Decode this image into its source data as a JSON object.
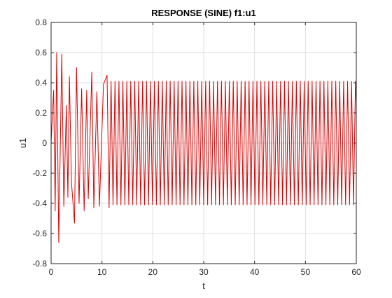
{
  "chart_data": {
    "type": "line",
    "title": "RESPONSE (SINE) f1:u1",
    "xlabel": "t",
    "ylabel": "u1",
    "xlim": [
      0,
      60
    ],
    "ylim": [
      -0.8,
      0.8
    ],
    "xticks": [
      0,
      10,
      20,
      30,
      40,
      50,
      60
    ],
    "yticks": [
      -0.8,
      -0.6,
      -0.4,
      -0.2,
      0,
      0.2,
      0.4,
      0.6,
      0.8
    ],
    "xtick_labels": [
      "0",
      "10",
      "20",
      "30",
      "40",
      "50",
      "60"
    ],
    "ytick_labels": [
      "-0.8",
      "-0.6",
      "-0.4",
      "-0.2",
      "0",
      "0.2",
      "0.4",
      "0.6",
      "0.8"
    ],
    "grid": true,
    "line_color": "#dd0000",
    "series": [
      {
        "color": "#dd0000",
        "signal": {
          "steady_amplitude": 0.41,
          "period": 0.775,
          "transient_amplitude": 0.26,
          "decay_time": 3.5,
          "t_end": 60
        },
        "peaks": [
          {
            "t": 0.5,
            "u": 0.35
          },
          {
            "t": 0.8,
            "u": -0.45
          },
          {
            "t": 1.1,
            "u": 0.6
          },
          {
            "t": 1.5,
            "u": -0.66
          },
          {
            "t": 2.1,
            "u": 0.59
          },
          {
            "t": 2.5,
            "u": -0.42
          },
          {
            "t": 3.0,
            "u": 0.25
          },
          {
            "t": 3.3,
            "u": -0.36
          },
          {
            "t": 3.6,
            "u": 0.44
          },
          {
            "t": 4.0,
            "u": -0.26
          },
          {
            "t": 4.6,
            "u": -0.53
          },
          {
            "t": 5.0,
            "u": 0.5
          },
          {
            "t": 5.5,
            "u": -0.4
          },
          {
            "t": 6.0,
            "u": 0.36
          },
          {
            "t": 6.5,
            "u": -0.45
          },
          {
            "t": 7.0,
            "u": 0.35
          },
          {
            "t": 7.3,
            "u": -0.37
          },
          {
            "t": 8.0,
            "u": 0.47
          },
          {
            "t": 8.4,
            "u": -0.43
          },
          {
            "t": 9.0,
            "u": 0.34
          },
          {
            "t": 9.5,
            "u": -0.42
          },
          {
            "t": 10.3,
            "u": 0.39
          },
          {
            "t": 11.0,
            "u": 0.45
          },
          {
            "t": 11.4,
            "u": -0.43
          }
        ]
      }
    ]
  }
}
